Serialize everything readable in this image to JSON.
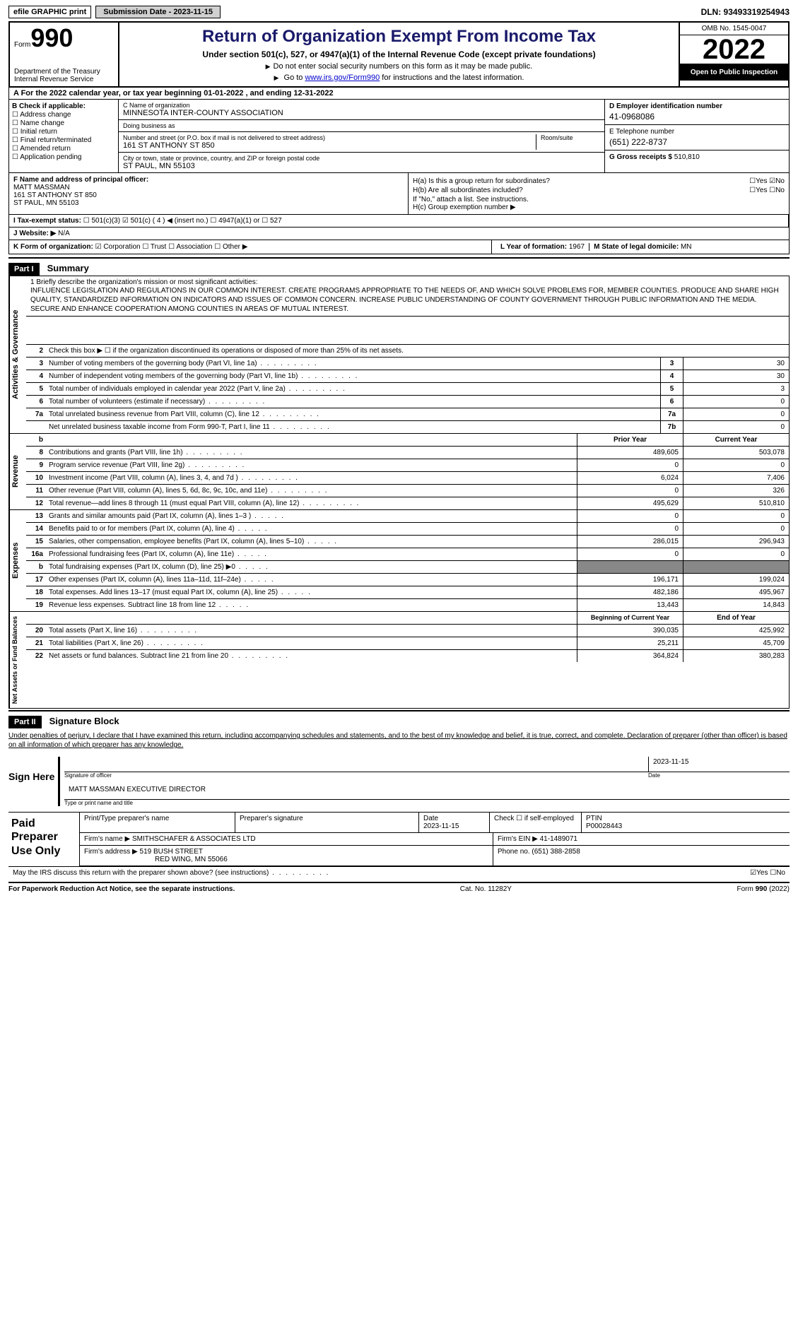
{
  "top": {
    "efile": "efile GRAPHIC print",
    "submit_label": "Submission Date - 2023-11-15",
    "dln": "DLN: 93493319254943"
  },
  "header": {
    "form_prefix": "Form",
    "form_number": "990",
    "title": "Return of Organization Exempt From Income Tax",
    "subtitle": "Under section 501(c), 527, or 4947(a)(1) of the Internal Revenue Code (except private foundations)",
    "note1": "Do not enter social security numbers on this form as it may be made public.",
    "note2_pre": "Go to ",
    "note2_link": "www.irs.gov/Form990",
    "note2_post": " for instructions and the latest information.",
    "dept": "Department of the Treasury\nInternal Revenue Service",
    "omb": "OMB No. 1545-0047",
    "year": "2022",
    "open": "Open to Public Inspection"
  },
  "section_a": "A  For the 2022 calendar year, or tax year beginning 01-01-2022   , and ending 12-31-2022",
  "box_b": {
    "label": "B Check if applicable:",
    "items": [
      "Address change",
      "Name change",
      "Initial return",
      "Final return/terminated",
      "Amended return",
      "Application pending"
    ]
  },
  "box_c": {
    "name_lbl": "C Name of organization",
    "name": "MINNESOTA INTER-COUNTY ASSOCIATION",
    "dba_lbl": "Doing business as",
    "dba": "",
    "addr_lbl": "Number and street (or P.O. box if mail is not delivered to street address)",
    "addr": "161 ST ANTHONY ST 850",
    "room_lbl": "Room/suite",
    "city_lbl": "City or town, state or province, country, and ZIP or foreign postal code",
    "city": "ST PAUL, MN  55103"
  },
  "box_d": {
    "ein_lbl": "D Employer identification number",
    "ein": "41-0968086",
    "tel_lbl": "E Telephone number",
    "tel": "(651) 222-8737",
    "gross_lbl": "G Gross receipts $",
    "gross": "510,810"
  },
  "box_f": {
    "lbl": "F Name and address of principal officer:",
    "name": "MATT MASSMAN",
    "addr1": "161 ST ANTHONY ST 850",
    "addr2": "ST PAUL, MN  55103"
  },
  "box_h": {
    "ha": "H(a)  Is this a group return for subordinates?",
    "hb": "H(b)  Are all subordinates included?",
    "hb_note": "If \"No,\" attach a list. See instructions.",
    "hc": "H(c)  Group exemption number ▶"
  },
  "row_i": {
    "label": "I    Tax-exempt status:",
    "opts": [
      "501(c)(3)",
      "501(c) ( 4 ) ◀ (insert no.)",
      "4947(a)(1) or",
      "527"
    ]
  },
  "row_j": {
    "label": "J   Website: ▶",
    "val": "N/A"
  },
  "row_k": {
    "label": "K Form of organization:",
    "opts": [
      "Corporation",
      "Trust",
      "Association",
      "Other ▶"
    ]
  },
  "row_l": {
    "label": "L Year of formation:",
    "val": "1967"
  },
  "row_m": {
    "label": "M State of legal domicile:",
    "val": "MN"
  },
  "part1_label": "Part I",
  "part1_title": "Summary",
  "mission": {
    "lbl": "1  Briefly describe the organization's mission or most significant activities:",
    "text": "INFLUENCE LEGISLATION AND REGULATIONS IN OUR COMMON INTEREST. CREATE PROGRAMS APPROPRIATE TO THE NEEDS OF, AND WHICH SOLVE PROBLEMS FOR, MEMBER COUNTIES. PRODUCE AND SHARE HIGH QUALITY, STANDARDIZED INFORMATION ON INDICATORS AND ISSUES OF COMMON CONCERN. INCREASE PUBLIC UNDERSTANDING OF COUNTY GOVERNMENT THROUGH PUBLIC INFORMATION AND THE MEDIA. SECURE AND ENHANCE COOPERATION AMONG COUNTIES IN AREAS OF MUTUAL INTEREST."
  },
  "governance": {
    "side": "Activities & Governance",
    "l2": "Check this box ▶ ☐  if the organization discontinued its operations or disposed of more than 25% of its net assets.",
    "rows": [
      {
        "n": "3",
        "txt": "Number of voting members of the governing body (Part VI, line 1a)",
        "k": "3",
        "v": "30"
      },
      {
        "n": "4",
        "txt": "Number of independent voting members of the governing body (Part VI, line 1b)",
        "k": "4",
        "v": "30"
      },
      {
        "n": "5",
        "txt": "Total number of individuals employed in calendar year 2022 (Part V, line 2a)",
        "k": "5",
        "v": "3"
      },
      {
        "n": "6",
        "txt": "Total number of volunteers (estimate if necessary)",
        "k": "6",
        "v": "0"
      },
      {
        "n": "7a",
        "txt": "Total unrelated business revenue from Part VIII, column (C), line 12",
        "k": "7a",
        "v": "0"
      },
      {
        "n": "",
        "txt": "Net unrelated business taxable income from Form 990-T, Part I, line 11",
        "k": "7b",
        "v": "0"
      }
    ]
  },
  "revenue": {
    "side": "Revenue",
    "hdr_b": "b",
    "hdr_prior": "Prior Year",
    "hdr_current": "Current Year",
    "rows": [
      {
        "n": "8",
        "txt": "Contributions and grants (Part VIII, line 1h)",
        "p": "489,605",
        "c": "503,078"
      },
      {
        "n": "9",
        "txt": "Program service revenue (Part VIII, line 2g)",
        "p": "0",
        "c": "0"
      },
      {
        "n": "10",
        "txt": "Investment income (Part VIII, column (A), lines 3, 4, and 7d )",
        "p": "6,024",
        "c": "7,406"
      },
      {
        "n": "11",
        "txt": "Other revenue (Part VIII, column (A), lines 5, 6d, 8c, 9c, 10c, and 11e)",
        "p": "0",
        "c": "326"
      },
      {
        "n": "12",
        "txt": "Total revenue—add lines 8 through 11 (must equal Part VIII, column (A), line 12)",
        "p": "495,629",
        "c": "510,810"
      }
    ]
  },
  "expenses": {
    "side": "Expenses",
    "rows": [
      {
        "n": "13",
        "txt": "Grants and similar amounts paid (Part IX, column (A), lines 1–3 )",
        "p": "0",
        "c": "0"
      },
      {
        "n": "14",
        "txt": "Benefits paid to or for members (Part IX, column (A), line 4)",
        "p": "0",
        "c": "0"
      },
      {
        "n": "15",
        "txt": "Salaries, other compensation, employee benefits (Part IX, column (A), lines 5–10)",
        "p": "286,015",
        "c": "296,943"
      },
      {
        "n": "16a",
        "txt": "Professional fundraising fees (Part IX, column (A), line 11e)",
        "p": "0",
        "c": "0"
      },
      {
        "n": "b",
        "txt": "Total fundraising expenses (Part IX, column (D), line 25) ▶0",
        "p": "",
        "c": "",
        "shade": true
      },
      {
        "n": "17",
        "txt": "Other expenses (Part IX, column (A), lines 11a–11d, 11f–24e)",
        "p": "196,171",
        "c": "199,024"
      },
      {
        "n": "18",
        "txt": "Total expenses. Add lines 13–17 (must equal Part IX, column (A), line 25)",
        "p": "482,186",
        "c": "495,967"
      },
      {
        "n": "19",
        "txt": "Revenue less expenses. Subtract line 18 from line 12",
        "p": "13,443",
        "c": "14,843"
      }
    ]
  },
  "netassets": {
    "side": "Net Assets or Fund Balances",
    "hdr_begin": "Beginning of Current Year",
    "hdr_end": "End of Year",
    "rows": [
      {
        "n": "20",
        "txt": "Total assets (Part X, line 16)",
        "p": "390,035",
        "c": "425,992"
      },
      {
        "n": "21",
        "txt": "Total liabilities (Part X, line 26)",
        "p": "25,211",
        "c": "45,709"
      },
      {
        "n": "22",
        "txt": "Net assets or fund balances. Subtract line 21 from line 20",
        "p": "364,824",
        "c": "380,283"
      }
    ]
  },
  "part2_label": "Part II",
  "part2_title": "Signature Block",
  "penalty": "Under penalties of perjury, I declare that I have examined this return, including accompanying schedules and statements, and to the best of my knowledge and belief, it is true, correct, and complete. Declaration of preparer (other than officer) is based on all information of which preparer has any knowledge.",
  "sign": {
    "label": "Sign Here",
    "sig_cap": "Signature of officer",
    "date": "2023-11-15",
    "date_cap": "Date",
    "name": "MATT MASSMAN  EXECUTIVE DIRECTOR",
    "name_cap": "Type or print name and title"
  },
  "preparer": {
    "label": "Paid Preparer Use Only",
    "h_print": "Print/Type preparer's name",
    "h_sig": "Preparer's signature",
    "h_date": "Date",
    "date": "2023-11-15",
    "h_check": "Check ☐ if self-employed",
    "h_ptin": "PTIN",
    "ptin": "P00028443",
    "firm_lbl": "Firm's name    ▶",
    "firm": "SMITHSCHAFER & ASSOCIATES LTD",
    "firmein_lbl": "Firm's EIN ▶",
    "firmein": "41-1489071",
    "addr_lbl": "Firm's address ▶",
    "addr1": "519 BUSH STREET",
    "addr2": "RED WING, MN  55066",
    "phone_lbl": "Phone no.",
    "phone": "(651) 388-2858"
  },
  "may_discuss": "May the IRS discuss this return with the preparer shown above? (see instructions)",
  "footer": {
    "left": "For Paperwork Reduction Act Notice, see the separate instructions.",
    "mid": "Cat. No. 11282Y",
    "right": "Form 990 (2022)"
  }
}
